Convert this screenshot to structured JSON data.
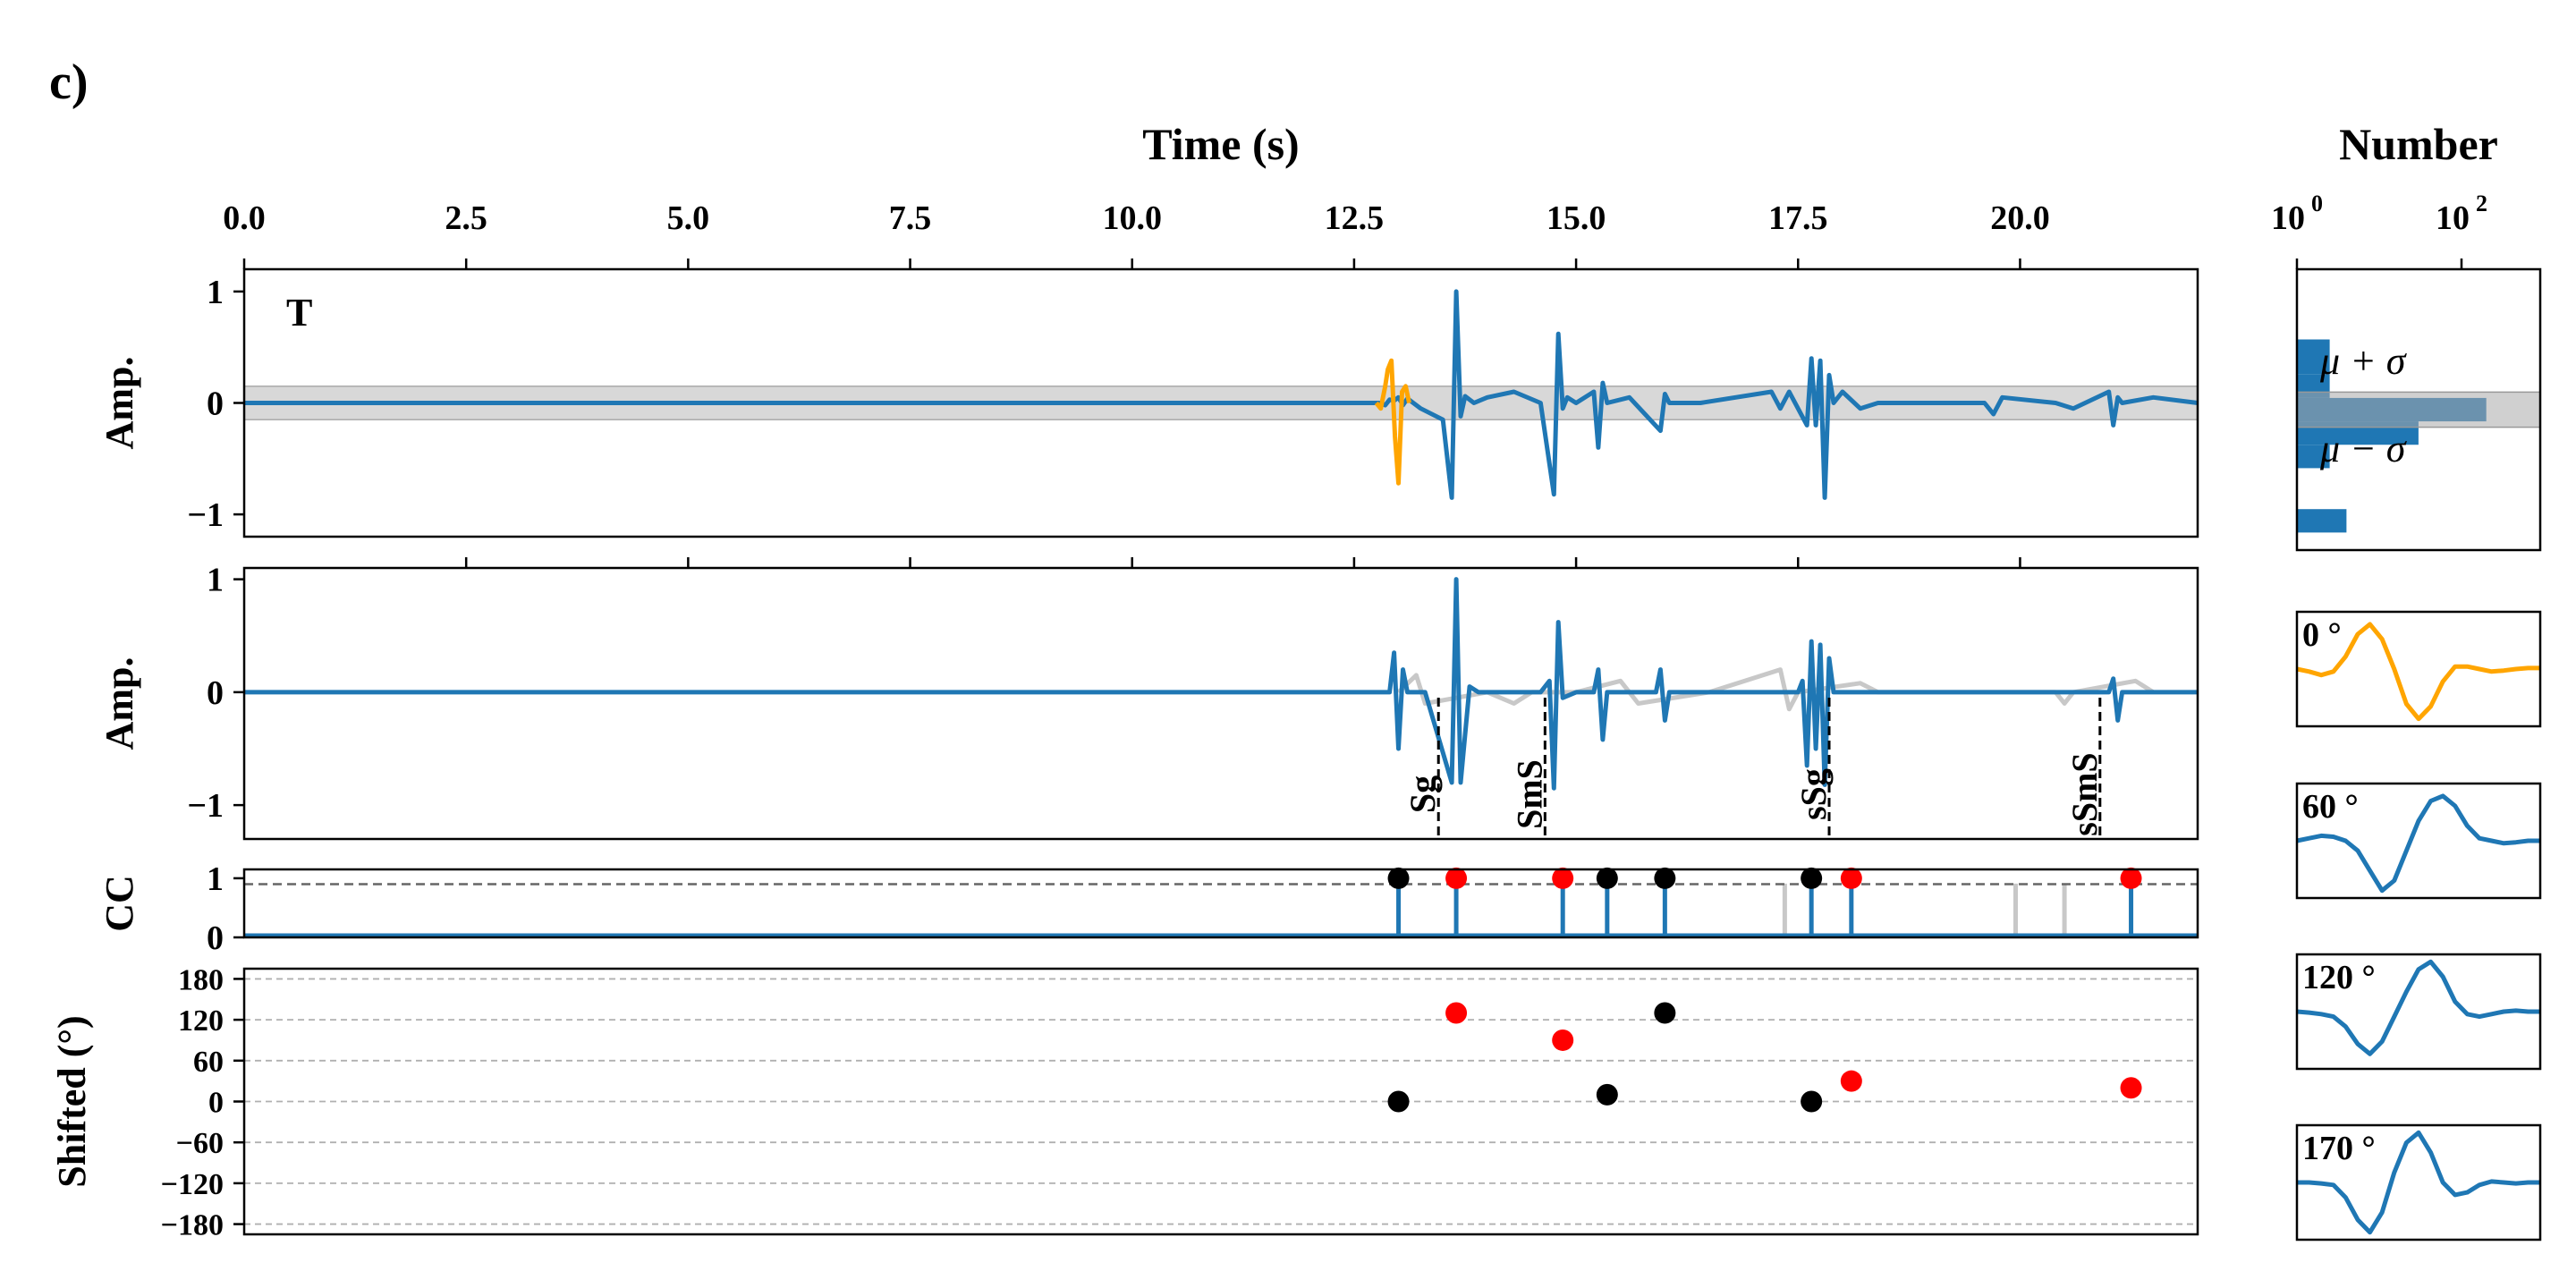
{
  "panel_label": "c)",
  "colors": {
    "main": "#1f77b4",
    "highlight": "#ffa500",
    "band": "#c8c8c8",
    "ghost": "#c8c8c8",
    "red": "#ff0000",
    "black": "#000000",
    "threshold": "#666666"
  },
  "chart_data": [
    {
      "id": "top_trace",
      "type": "line",
      "title": "Time (s)",
      "ylabel": "Amp.",
      "annotation": "T",
      "xlim": [
        0,
        22
      ],
      "ylim": [
        -1.2,
        1.2
      ],
      "x_ticks": [
        0.0,
        2.5,
        5.0,
        7.5,
        10.0,
        12.5,
        15.0,
        17.5,
        20.0
      ],
      "x_tick_labels": [
        "0.0",
        "2.5",
        "5.0",
        "7.5",
        "10.0",
        "12.5",
        "15.0",
        "17.5",
        "20.0"
      ],
      "y_ticks": [
        1,
        0,
        -1
      ],
      "y_tick_labels": [
        "1",
        "0",
        "−1"
      ],
      "band": [
        -0.15,
        0.15
      ],
      "series": [
        {
          "x": [
            0,
            12.8,
            12.85,
            12.9,
            12.95,
            13.0,
            13.05,
            13.1,
            13.25,
            13.5,
            13.6,
            13.65,
            13.7,
            13.75,
            13.85,
            14.0,
            14.3,
            14.6,
            14.75,
            14.8,
            14.85,
            14.9,
            15.0,
            15.2,
            15.25,
            15.3,
            15.35,
            15.6,
            15.95,
            16.0,
            16.05,
            16.4,
            17.2,
            17.3,
            17.4,
            17.6,
            17.65,
            17.7,
            17.75,
            17.8,
            17.85,
            17.9,
            18.0,
            18.2,
            18.4,
            19.6,
            19.7,
            19.8,
            20.4,
            20.6,
            21.0,
            21.05,
            21.1,
            21.15,
            21.5,
            22.0
          ],
          "y": [
            0,
            0,
            -0.02,
            0.03,
            0.02,
            0.05,
            -0.02,
            0.04,
            -0.05,
            -0.15,
            -0.85,
            1.0,
            -0.12,
            0.06,
            0.0,
            0.05,
            0.1,
            0.0,
            -0.82,
            0.62,
            -0.05,
            0.05,
            0.0,
            0.1,
            -0.4,
            0.18,
            0.0,
            0.05,
            -0.25,
            0.08,
            0.0,
            0.0,
            0.1,
            -0.05,
            0.1,
            -0.2,
            0.4,
            -0.2,
            0.38,
            -0.85,
            0.25,
            0.0,
            0.1,
            -0.05,
            0.0,
            0.0,
            -0.1,
            0.05,
            0.0,
            -0.05,
            0.1,
            -0.2,
            0.05,
            0.0,
            0.05,
            0.0
          ]
        },
        {
          "x": [
            12.75,
            12.8,
            12.85,
            12.88,
            12.92,
            12.96,
            13.0,
            13.04,
            13.08,
            13.12
          ],
          "y": [
            0.0,
            -0.05,
            0.15,
            0.3,
            0.38,
            -0.3,
            -0.72,
            0.1,
            0.15,
            0.0
          ]
        }
      ]
    },
    {
      "id": "aligned_trace",
      "type": "line",
      "ylabel": "Amp.",
      "xlim": [
        0,
        22
      ],
      "ylim": [
        -1.3,
        1.1
      ],
      "y_ticks": [
        1,
        0,
        -1
      ],
      "y_tick_labels": [
        "1",
        "0",
        "−1"
      ],
      "phases": [
        {
          "label": "Sg",
          "x": 13.45
        },
        {
          "label": "SmS",
          "x": 14.65
        },
        {
          "label": "sSg",
          "x": 17.85
        },
        {
          "label": "sSmS",
          "x": 20.9
        }
      ],
      "series": [
        {
          "x": [
            0,
            12.9,
            12.95,
            13.0,
            13.05,
            13.1,
            13.3,
            13.6,
            13.65,
            13.7,
            13.8,
            13.9,
            14.6,
            14.7,
            14.75,
            14.8,
            14.85,
            15.0,
            15.2,
            15.25,
            15.3,
            15.35,
            15.9,
            15.95,
            16.0,
            16.05,
            17.5,
            17.55,
            17.6,
            17.65,
            17.7,
            17.75,
            17.8,
            17.85,
            17.9,
            18.0,
            21.0,
            21.05,
            21.1,
            21.15,
            22.0
          ],
          "y": [
            0,
            0,
            0.35,
            -0.5,
            0.2,
            0.0,
            0.0,
            -0.8,
            1.0,
            -0.8,
            0.05,
            0.0,
            0.0,
            0.1,
            -0.85,
            0.62,
            -0.05,
            0.0,
            0.0,
            0.2,
            -0.42,
            0.0,
            0.0,
            0.2,
            -0.25,
            0.0,
            0.0,
            0.1,
            -0.65,
            0.45,
            -0.5,
            0.42,
            -0.82,
            0.3,
            0.0,
            0.0,
            0.0,
            0.12,
            -0.25,
            0.0,
            0.0
          ]
        },
        {
          "x": [
            13.0,
            13.2,
            13.3,
            14.0,
            14.3,
            14.5,
            15.0,
            15.5,
            15.7,
            16.5,
            17.3,
            17.4,
            17.5,
            18.2,
            18.4,
            20.4,
            20.5,
            20.6,
            21.3,
            21.5
          ],
          "y": [
            0.0,
            0.15,
            -0.1,
            0.0,
            -0.1,
            0.0,
            0.0,
            0.1,
            -0.1,
            0.0,
            0.2,
            -0.15,
            0.0,
            0.08,
            0.0,
            0.0,
            -0.1,
            0.0,
            0.1,
            0.0
          ]
        }
      ]
    },
    {
      "id": "cc",
      "type": "stem",
      "ylabel": "CC",
      "xlim": [
        0,
        22
      ],
      "ylim": [
        0,
        1.15
      ],
      "y_ticks": [
        1,
        0
      ],
      "y_tick_labels": [
        "1",
        "0"
      ],
      "threshold": 0.9,
      "black_x": [
        13.0,
        15.35,
        16.0,
        17.65
      ],
      "red_x": [
        13.65,
        14.85,
        18.1,
        21.25
      ],
      "ghost_x": [
        17.35,
        19.95,
        20.5
      ],
      "value": 1.0
    },
    {
      "id": "shift",
      "type": "scatter",
      "ylabel": "Shifted (°)",
      "xlim": [
        0,
        22
      ],
      "ylim": [
        -195,
        195
      ],
      "y_ticks": [
        180,
        120,
        60,
        0,
        -60,
        -120,
        -180
      ],
      "y_tick_labels": [
        "180",
        "120",
        "60",
        "0",
        "−60",
        "−120",
        "−180"
      ],
      "grid": true,
      "black": [
        {
          "x": 13.0,
          "y": 0
        },
        {
          "x": 15.35,
          "y": 10
        },
        {
          "x": 16.0,
          "y": 130
        },
        {
          "x": 17.65,
          "y": 0
        }
      ],
      "red": [
        {
          "x": 13.65,
          "y": 130
        },
        {
          "x": 14.85,
          "y": 90
        },
        {
          "x": 18.1,
          "y": 30
        },
        {
          "x": 21.25,
          "y": 20
        }
      ]
    },
    {
      "id": "histogram",
      "type": "bar",
      "orientation": "horizontal",
      "title": "Number",
      "x_scale": "log",
      "x_ticks": [
        1,
        100
      ],
      "x_tick_labels": [
        "10",
        "10"
      ],
      "x_tick_exponents": [
        "0",
        "2"
      ],
      "ylim": [
        -1.2,
        1.2
      ],
      "band": [
        -0.15,
        0.15
      ],
      "band_labels": [
        "μ + σ",
        "μ − σ"
      ],
      "bins": [
        {
          "y0": 0.3,
          "y1": 0.6,
          "count": 2.5
        },
        {
          "y0": 0.1,
          "y1": 0.3,
          "count": 2.5
        },
        {
          "y0": -0.1,
          "y1": 0.1,
          "count": 200
        },
        {
          "y0": -0.3,
          "y1": -0.1,
          "count": 30
        },
        {
          "y0": -0.5,
          "y1": -0.3,
          "count": 2.5
        },
        {
          "y0": -1.05,
          "y1": -0.85,
          "count": 4
        }
      ]
    },
    {
      "id": "templates",
      "type": "line",
      "items": [
        {
          "label": "0 °",
          "color": "#ffa500",
          "x": [
            0,
            0.5,
            1,
            1.5,
            2,
            2.5,
            3,
            3.5,
            4,
            4.5,
            5,
            5.5,
            6,
            6.5,
            7,
            7.5,
            8,
            8.5,
            9,
            9.5,
            10
          ],
          "y": [
            0.0,
            -0.05,
            -0.12,
            -0.05,
            0.25,
            0.7,
            0.9,
            0.6,
            0.0,
            -0.7,
            -1.0,
            -0.75,
            -0.25,
            0.05,
            0.05,
            0.0,
            -0.05,
            -0.03,
            0.0,
            0.02,
            0.02
          ]
        },
        {
          "label": "60 °",
          "color": "#1f77b4",
          "x": [
            0,
            0.5,
            1,
            1.5,
            2,
            2.5,
            3,
            3.5,
            4,
            4.5,
            5,
            5.5,
            6,
            6.5,
            7,
            7.5,
            8,
            8.5,
            9,
            9.5,
            10
          ],
          "y": [
            0.0,
            0.05,
            0.1,
            0.08,
            0.0,
            -0.2,
            -0.6,
            -1.0,
            -0.8,
            -0.2,
            0.4,
            0.8,
            0.9,
            0.7,
            0.3,
            0.05,
            0.0,
            -0.05,
            -0.03,
            0.0,
            0.0
          ]
        },
        {
          "label": "120 °",
          "color": "#1f77b4",
          "x": [
            0,
            0.5,
            1,
            1.5,
            2,
            2.5,
            3,
            3.5,
            4,
            4.5,
            5,
            5.5,
            6,
            6.5,
            7,
            7.5,
            8,
            8.5,
            9,
            9.5,
            10
          ],
          "y": [
            0.0,
            -0.02,
            -0.05,
            -0.1,
            -0.3,
            -0.65,
            -0.85,
            -0.6,
            -0.1,
            0.4,
            0.85,
            1.0,
            0.7,
            0.2,
            -0.05,
            -0.1,
            -0.05,
            0.0,
            0.02,
            0.0,
            0.0
          ]
        },
        {
          "label": "170 °",
          "color": "#1f77b4",
          "x": [
            0,
            0.5,
            1,
            1.5,
            2,
            2.5,
            3,
            3.5,
            4,
            4.5,
            5,
            5.5,
            6,
            6.5,
            7,
            7.5,
            8,
            8.5,
            9,
            9.5,
            10
          ],
          "y": [
            0.0,
            0.0,
            -0.02,
            -0.05,
            -0.3,
            -0.75,
            -1.0,
            -0.6,
            0.2,
            0.8,
            1.0,
            0.6,
            0.0,
            -0.25,
            -0.2,
            -0.05,
            0.02,
            0.0,
            -0.02,
            0.0,
            0.0
          ]
        }
      ]
    }
  ]
}
